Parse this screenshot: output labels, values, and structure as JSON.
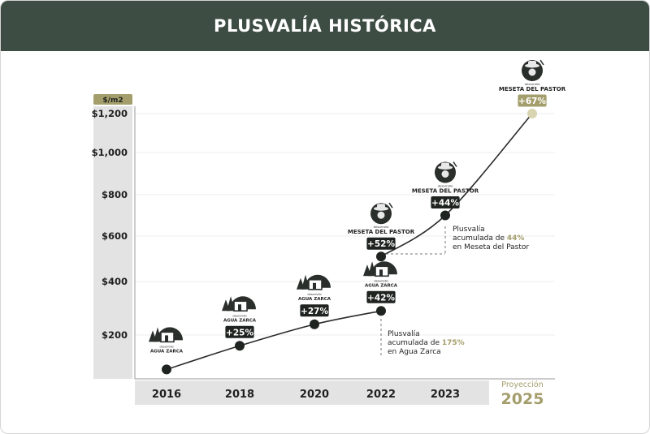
{
  "header": {
    "title": "PLUSVALÍA HISTÓRICA"
  },
  "colors": {
    "header_bg": "#3d4d44",
    "accent_olive": "#a49e6c",
    "dark": "#1f2421",
    "panel_gray": "#e3e3e3",
    "line": "#2b2b2b"
  },
  "chart_data": {
    "type": "line",
    "title": "",
    "ylabel": "$/m2",
    "y_ticks": [
      "$200",
      "$400",
      "$600",
      "$800",
      "$1,000",
      "$1,200"
    ],
    "ylim": [
      200,
      1200
    ],
    "grid": true,
    "categories": [
      "2016",
      "2018",
      "2020",
      "2022",
      "2023",
      "2025"
    ],
    "x_axis_labels": [
      "2016",
      "2018",
      "2020",
      "2022",
      "2023"
    ],
    "projection": {
      "label": "Proyección",
      "year": "2025"
    },
    "series": [
      {
        "name": "AGUA ZARCA",
        "x": [
          "2016",
          "2018",
          "2020",
          "2022"
        ],
        "values": [
          120,
          175,
          240,
          290
        ],
        "labels": [
          "",
          "+25%",
          "+27%",
          "+42%"
        ],
        "logos": [
          {
            "small": "desarrollo",
            "big": "AGUA ZARCA"
          },
          {
            "small": "desarrollo",
            "big": "AGUA ZARCA"
          },
          {
            "small": "desarrollo",
            "big": "AGUA ZARCA"
          },
          {
            "small": "desarrollo",
            "big": "AGUA ZARCA"
          }
        ]
      },
      {
        "name": "MESETA DEL PASTOR",
        "x": [
          "2022",
          "2023",
          "2025"
        ],
        "values": [
          510,
          700,
          1200
        ],
        "labels": [
          "+52%",
          "+44%",
          "+67%"
        ],
        "logos": [
          {
            "small": "desarrollo",
            "big": "MESETA DEL PASTOR"
          },
          {
            "small": "desarrollo",
            "big": "MESETA DEL PASTOR"
          },
          {
            "small": "desarrollo",
            "big": "MESETA DEL PASTOR"
          }
        ]
      }
    ],
    "annotations": [
      {
        "line1": "Plusvalía",
        "line2_pre": "acumulada de ",
        "highlight": "175%",
        "line3": "en Agua Zarca"
      },
      {
        "line1": "Plusvalía",
        "line2_pre": "acumulada de ",
        "highlight": "44%",
        "line3": "en Meseta del Pastor"
      }
    ]
  }
}
